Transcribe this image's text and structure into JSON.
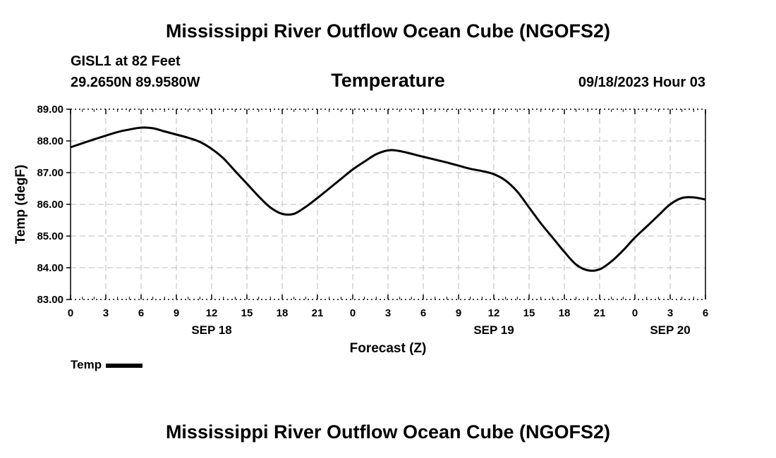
{
  "header": {
    "title": "Mississippi River Outflow Ocean Cube (NGOFS2)",
    "station": "GISL1 at 82 Feet",
    "coordinates": "29.2650N  89.9580W",
    "datetime": "09/18/2023 Hour 03"
  },
  "footer": {
    "title": "Mississippi River Outflow Ocean Cube (NGOFS2)"
  },
  "legend": {
    "label": "Temp"
  },
  "chart_data": {
    "type": "line",
    "title": "Temperature",
    "xlabel": "Forecast (Z)",
    "ylabel": "Temp (degF)",
    "xlim": [
      0,
      54
    ],
    "ylim": [
      83,
      89
    ],
    "grid": true,
    "legend_position": "bottom-left",
    "y_ticks": [
      "83.00",
      "84.00",
      "85.00",
      "86.00",
      "87.00",
      "88.00",
      "89.00"
    ],
    "x_ticks": [
      "0",
      "3",
      "6",
      "9",
      "12",
      "15",
      "18",
      "21",
      "0",
      "3",
      "6",
      "9",
      "12",
      "15",
      "18",
      "21",
      "0",
      "3",
      "6"
    ],
    "date_labels": [
      {
        "label": "SEP 18",
        "hour": 12
      },
      {
        "label": "SEP 19",
        "hour": 36
      },
      {
        "label": "SEP 20",
        "hour": 51
      }
    ],
    "series": [
      {
        "name": "Temp",
        "color": "#000000",
        "x": [
          0,
          2,
          4,
          5,
          6,
          7,
          8,
          9,
          10,
          11,
          12,
          13,
          14,
          15,
          16,
          17,
          18,
          19,
          20,
          21,
          22,
          23,
          24,
          25,
          26,
          27,
          28,
          30,
          32,
          33,
          34,
          35,
          36,
          37,
          38,
          39,
          40,
          41,
          42,
          43,
          44,
          45,
          46,
          47,
          48,
          49,
          50,
          51,
          52,
          53,
          54
        ],
        "values": [
          87.8,
          88.05,
          88.28,
          88.36,
          88.42,
          88.4,
          88.3,
          88.2,
          88.1,
          87.97,
          87.75,
          87.45,
          87.05,
          86.65,
          86.25,
          85.9,
          85.7,
          85.7,
          85.92,
          86.2,
          86.5,
          86.8,
          87.1,
          87.35,
          87.58,
          87.7,
          87.68,
          87.5,
          87.32,
          87.22,
          87.12,
          87.05,
          86.95,
          86.75,
          86.4,
          85.9,
          85.4,
          84.95,
          84.5,
          84.1,
          83.92,
          83.95,
          84.2,
          84.55,
          84.95,
          85.3,
          85.65,
          86.0,
          86.2,
          86.22,
          86.15
        ]
      }
    ]
  }
}
